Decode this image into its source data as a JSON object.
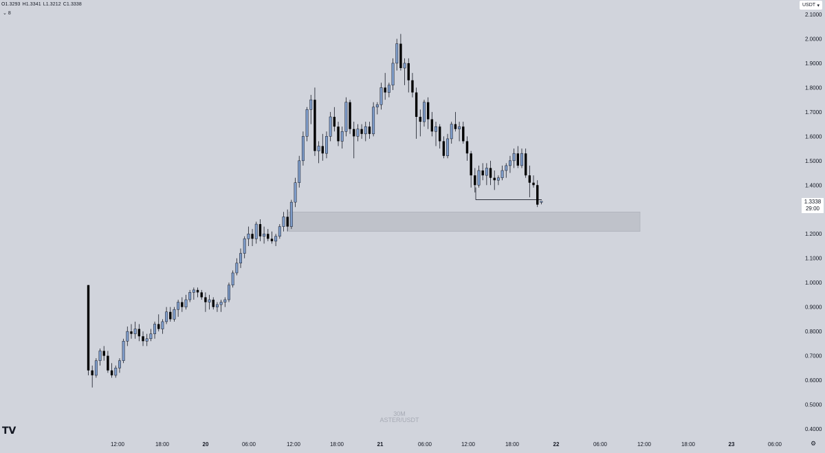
{
  "ohlc": {
    "open": "O1.3293",
    "high": "H1.3341",
    "low": "L1.3212",
    "close": "C1.3338"
  },
  "indicator_toggle": {
    "icon": "chevron-down-icon",
    "count": "8"
  },
  "currency": {
    "label": "USDT",
    "icon": "caret-down-icon"
  },
  "watermark": {
    "timeframe": "30M",
    "symbol": "ASTER/USDT"
  },
  "last_price": {
    "price": "1.3338",
    "countdown": "29:00"
  },
  "logo": {
    "text": "TV"
  },
  "settings": {
    "icon": "gear-icon"
  },
  "colors": {
    "background": "#d1d4dc",
    "up_candle": "#7e9cc9",
    "down_candle": "#000000",
    "zone": "#bfc2ca",
    "text": "#131722"
  },
  "chart_data": {
    "type": "candlestick",
    "symbol": "ASTER/USDT",
    "interval": "30M",
    "y_axis": {
      "range": [
        0.4,
        2.1
      ],
      "ticks": [
        "2.1000",
        "2.0000",
        "1.9000",
        "1.8000",
        "1.7000",
        "1.6000",
        "1.5000",
        "1.4000",
        "1.3000",
        "1.2000",
        "1.1000",
        "1.0000",
        "0.9000",
        "0.8000",
        "0.7000",
        "0.6000",
        "0.5000",
        "0.4000"
      ]
    },
    "x_axis": {
      "ticks": [
        "12:00",
        "18:00",
        "20",
        "06:00",
        "12:00",
        "18:00",
        "21",
        "06:00",
        "12:00",
        "18:00",
        "22",
        "06:00",
        "12:00",
        "18:00",
        "23",
        "06:00"
      ]
    },
    "candles": [
      [
        0.99,
        0.99,
        0.62,
        0.64
      ],
      [
        0.64,
        0.66,
        0.57,
        0.62
      ],
      [
        0.62,
        0.69,
        0.61,
        0.68
      ],
      [
        0.68,
        0.73,
        0.66,
        0.72
      ],
      [
        0.72,
        0.74,
        0.68,
        0.7
      ],
      [
        0.7,
        0.72,
        0.63,
        0.64
      ],
      [
        0.64,
        0.67,
        0.61,
        0.62
      ],
      [
        0.62,
        0.66,
        0.61,
        0.65
      ],
      [
        0.65,
        0.69,
        0.63,
        0.68
      ],
      [
        0.68,
        0.77,
        0.67,
        0.76
      ],
      [
        0.76,
        0.82,
        0.74,
        0.8
      ],
      [
        0.8,
        0.83,
        0.77,
        0.79
      ],
      [
        0.79,
        0.84,
        0.77,
        0.81
      ],
      [
        0.81,
        0.83,
        0.76,
        0.78
      ],
      [
        0.78,
        0.8,
        0.74,
        0.76
      ],
      [
        0.76,
        0.79,
        0.74,
        0.77
      ],
      [
        0.77,
        0.81,
        0.76,
        0.79
      ],
      [
        0.79,
        0.84,
        0.77,
        0.83
      ],
      [
        0.83,
        0.87,
        0.8,
        0.81
      ],
      [
        0.81,
        0.85,
        0.79,
        0.84
      ],
      [
        0.84,
        0.9,
        0.83,
        0.88
      ],
      [
        0.88,
        0.9,
        0.84,
        0.85
      ],
      [
        0.85,
        0.9,
        0.84,
        0.89
      ],
      [
        0.89,
        0.93,
        0.86,
        0.92
      ],
      [
        0.92,
        0.94,
        0.88,
        0.9
      ],
      [
        0.9,
        0.95,
        0.89,
        0.93
      ],
      [
        0.93,
        0.97,
        0.92,
        0.96
      ],
      [
        0.96,
        0.98,
        0.93,
        0.97
      ],
      [
        0.97,
        0.98,
        0.94,
        0.96
      ],
      [
        0.96,
        0.97,
        0.93,
        0.94
      ],
      [
        0.94,
        0.96,
        0.88,
        0.92
      ],
      [
        0.92,
        0.95,
        0.89,
        0.93
      ],
      [
        0.93,
        0.94,
        0.89,
        0.9
      ],
      [
        0.9,
        0.92,
        0.88,
        0.91
      ],
      [
        0.91,
        0.93,
        0.88,
        0.92
      ],
      [
        0.92,
        0.94,
        0.9,
        0.93
      ],
      [
        0.93,
        1.0,
        0.92,
        0.99
      ],
      [
        0.99,
        1.05,
        0.98,
        1.04
      ],
      [
        1.04,
        1.1,
        1.03,
        1.08
      ],
      [
        1.08,
        1.14,
        1.06,
        1.12
      ],
      [
        1.12,
        1.19,
        1.1,
        1.18
      ],
      [
        1.18,
        1.23,
        1.15,
        1.2
      ],
      [
        1.2,
        1.22,
        1.15,
        1.18
      ],
      [
        1.18,
        1.25,
        1.16,
        1.24
      ],
      [
        1.24,
        1.26,
        1.17,
        1.19
      ],
      [
        1.19,
        1.23,
        1.16,
        1.2
      ],
      [
        1.2,
        1.22,
        1.17,
        1.18
      ],
      [
        1.18,
        1.21,
        1.16,
        1.17
      ],
      [
        1.17,
        1.2,
        1.15,
        1.19
      ],
      [
        1.19,
        1.24,
        1.18,
        1.23
      ],
      [
        1.23,
        1.29,
        1.21,
        1.27
      ],
      [
        1.27,
        1.3,
        1.21,
        1.23
      ],
      [
        1.23,
        1.34,
        1.22,
        1.33
      ],
      [
        1.33,
        1.43,
        1.31,
        1.41
      ],
      [
        1.41,
        1.52,
        1.39,
        1.5
      ],
      [
        1.5,
        1.62,
        1.48,
        1.6
      ],
      [
        1.6,
        1.72,
        1.58,
        1.71
      ],
      [
        1.71,
        1.77,
        1.65,
        1.75
      ],
      [
        1.75,
        1.8,
        1.52,
        1.54
      ],
      [
        1.54,
        1.58,
        1.49,
        1.56
      ],
      [
        1.56,
        1.61,
        1.5,
        1.53
      ],
      [
        1.53,
        1.62,
        1.51,
        1.6
      ],
      [
        1.6,
        1.7,
        1.58,
        1.68
      ],
      [
        1.68,
        1.72,
        1.62,
        1.64
      ],
      [
        1.64,
        1.66,
        1.56,
        1.58
      ],
      [
        1.58,
        1.64,
        1.55,
        1.62
      ],
      [
        1.62,
        1.76,
        1.6,
        1.74
      ],
      [
        1.74,
        1.75,
        1.61,
        1.63
      ],
      [
        1.63,
        1.66,
        1.51,
        1.6
      ],
      [
        1.6,
        1.65,
        1.58,
        1.63
      ],
      [
        1.63,
        1.65,
        1.59,
        1.61
      ],
      [
        1.61,
        1.66,
        1.58,
        1.64
      ],
      [
        1.64,
        1.66,
        1.59,
        1.61
      ],
      [
        1.61,
        1.74,
        1.6,
        1.72
      ],
      [
        1.72,
        1.74,
        1.69,
        1.73
      ],
      [
        1.73,
        1.82,
        1.71,
        1.8
      ],
      [
        1.8,
        1.86,
        1.75,
        1.78
      ],
      [
        1.78,
        1.82,
        1.76,
        1.81
      ],
      [
        1.81,
        1.92,
        1.79,
        1.9
      ],
      [
        1.9,
        2.0,
        1.87,
        1.98
      ],
      [
        1.98,
        2.02,
        1.87,
        1.88
      ],
      [
        1.88,
        1.92,
        1.81,
        1.9
      ],
      [
        1.9,
        1.92,
        1.78,
        1.83
      ],
      [
        1.83,
        1.86,
        1.76,
        1.78
      ],
      [
        1.78,
        1.8,
        1.59,
        1.68
      ],
      [
        1.68,
        1.71,
        1.6,
        1.66
      ],
      [
        1.66,
        1.75,
        1.64,
        1.74
      ],
      [
        1.74,
        1.76,
        1.63,
        1.67
      ],
      [
        1.67,
        1.7,
        1.6,
        1.62
      ],
      [
        1.62,
        1.66,
        1.56,
        1.64
      ],
      [
        1.64,
        1.65,
        1.55,
        1.58
      ],
      [
        1.58,
        1.6,
        1.51,
        1.52
      ],
      [
        1.52,
        1.61,
        1.51,
        1.59
      ],
      [
        1.59,
        1.66,
        1.57,
        1.65
      ],
      [
        1.65,
        1.7,
        1.62,
        1.63
      ],
      [
        1.63,
        1.66,
        1.58,
        1.64
      ],
      [
        1.64,
        1.66,
        1.57,
        1.58
      ],
      [
        1.58,
        1.6,
        1.5,
        1.53
      ],
      [
        1.53,
        1.54,
        1.39,
        1.44
      ],
      [
        1.44,
        1.47,
        1.37,
        1.4
      ],
      [
        1.4,
        1.48,
        1.39,
        1.46
      ],
      [
        1.46,
        1.49,
        1.42,
        1.44
      ],
      [
        1.44,
        1.49,
        1.4,
        1.47
      ],
      [
        1.47,
        1.5,
        1.4,
        1.43
      ],
      [
        1.43,
        1.46,
        1.38,
        1.42
      ],
      [
        1.42,
        1.44,
        1.4,
        1.43
      ],
      [
        1.43,
        1.48,
        1.42,
        1.46
      ],
      [
        1.46,
        1.49,
        1.43,
        1.48
      ],
      [
        1.48,
        1.52,
        1.45,
        1.5
      ],
      [
        1.5,
        1.55,
        1.47,
        1.53
      ],
      [
        1.53,
        1.56,
        1.47,
        1.48
      ],
      [
        1.48,
        1.55,
        1.47,
        1.53
      ],
      [
        1.53,
        1.55,
        1.43,
        1.44
      ],
      [
        1.44,
        1.48,
        1.35,
        1.41
      ],
      [
        1.41,
        1.44,
        1.39,
        1.4
      ],
      [
        1.4,
        1.42,
        1.31,
        1.32
      ],
      [
        1.3293,
        1.3341,
        1.3212,
        1.3338
      ]
    ],
    "support_zone": {
      "top": 1.29,
      "bottom": 1.21,
      "color": "#bfc2ca"
    },
    "horizontal_line": {
      "price": 1.34
    },
    "last_price": 1.3338
  }
}
